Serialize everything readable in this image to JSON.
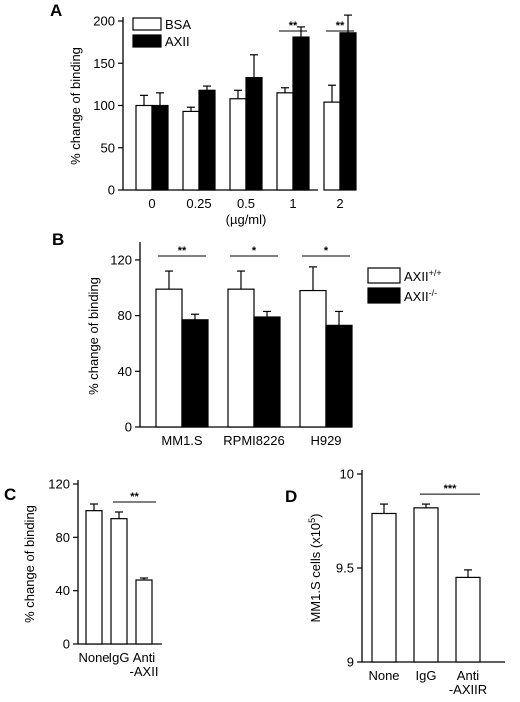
{
  "colors": {
    "bsa": "#ffffff",
    "axii": "#000000",
    "wt": "#ffffff",
    "ko": "#000000",
    "single": "#ffffff",
    "stroke": "#000000"
  },
  "chart_data": [
    {
      "panel": "A",
      "type": "bar",
      "categories": [
        "0",
        "0.25",
        "0.5",
        "1",
        "2"
      ],
      "xlabel": "(µg/ml)",
      "ylabel": "% change of binding",
      "ylim": [
        0,
        200
      ],
      "yticks": [
        0,
        50,
        100,
        150,
        200
      ],
      "legend": "top-left",
      "series": [
        {
          "name": "BSA",
          "color": "#ffffff",
          "values": [
            100,
            93,
            108,
            115,
            104
          ],
          "errors": [
            12,
            5,
            10,
            6,
            20
          ]
        },
        {
          "name": "AXII",
          "color": "#000000",
          "values": [
            100,
            118,
            133,
            181,
            186
          ],
          "errors": [
            15,
            5,
            27,
            12,
            21
          ]
        }
      ],
      "significance": [
        {
          "category": "1",
          "label": "**"
        },
        {
          "category": "2",
          "label": "**"
        }
      ]
    },
    {
      "panel": "B",
      "type": "bar",
      "categories": [
        "MM1.S",
        "RPMI8226",
        "H929"
      ],
      "xlabel": "",
      "ylabel": "% change of binding",
      "ylim": [
        0,
        130
      ],
      "yticks": [
        0,
        40,
        80,
        120
      ],
      "legend": "right",
      "series": [
        {
          "name_base": "AXII",
          "name_sup": "+/+",
          "color": "#ffffff",
          "values": [
            99,
            99,
            98
          ],
          "errors": [
            13,
            13,
            17
          ]
        },
        {
          "name_base": "AXII",
          "name_sup": "-/-",
          "color": "#000000",
          "values": [
            77,
            79,
            73
          ],
          "errors": [
            4,
            4,
            10
          ]
        }
      ],
      "significance": [
        {
          "category": "MM1.S",
          "label": "**"
        },
        {
          "category": "RPMI8226",
          "label": "*"
        },
        {
          "category": "H929",
          "label": "*"
        }
      ]
    },
    {
      "panel": "C",
      "type": "bar",
      "categories": [
        "None",
        "IgG",
        "Anti\n-AXII"
      ],
      "xlabel": "",
      "ylabel": "% change of binding",
      "ylim": [
        0,
        120
      ],
      "yticks": [
        0,
        40,
        80,
        120
      ],
      "series": [
        {
          "color": "#ffffff",
          "values": [
            100,
            94,
            48
          ],
          "errors": [
            5,
            5,
            1.5
          ]
        }
      ],
      "significance": [
        {
          "from": 1,
          "to": 2,
          "label": "**"
        }
      ]
    },
    {
      "panel": "D",
      "type": "bar",
      "categories": [
        "None",
        "IgG",
        "Anti\n-AXIIR"
      ],
      "xlabel": "",
      "ylabel_base": "MM1.S cells (x10",
      "ylabel_sup": "5",
      "ylabel_end": ")",
      "ylim": [
        9,
        10
      ],
      "yticks": [
        9,
        9.5,
        10
      ],
      "series": [
        {
          "color": "#ffffff",
          "values": [
            9.79,
            9.82,
            9.45
          ],
          "errors": [
            0.05,
            0.02,
            0.04
          ]
        }
      ],
      "significance": [
        {
          "from": 1,
          "to": 2,
          "label": "***"
        }
      ]
    }
  ]
}
